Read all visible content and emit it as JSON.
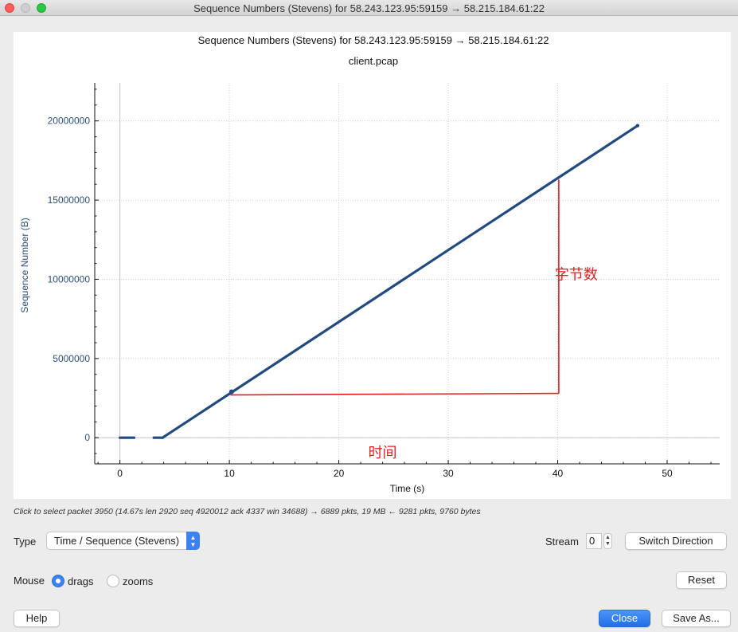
{
  "window": {
    "title": "Sequence Numbers (Stevens) for 58.243.123.95:59159 → 58.215.184.61:22"
  },
  "graph": {
    "title": "Sequence Numbers (Stevens) for 58.243.123.95:59159 → 58.215.184.61:22",
    "subtitle": "client.pcap"
  },
  "chart_data": {
    "type": "scatter",
    "title": "Sequence Numbers (Stevens) for 58.243.123.95:59159 → 58.215.184.61:22",
    "subtitle": "client.pcap",
    "xlabel": "Time (s)",
    "ylabel": "Sequence Number (B)",
    "xlim": [
      -2.3,
      54.8
    ],
    "ylim": [
      -1650000,
      22400000
    ],
    "x_ticks": [
      0,
      10,
      20,
      30,
      40,
      50
    ],
    "y_ticks": [
      0,
      5000000,
      10000000,
      15000000,
      20000000
    ],
    "grid": true,
    "series_color": "#234a80",
    "series": [
      {
        "segments": [
          {
            "x": [
              0.0,
              1.3
            ],
            "y": [
              0,
              0
            ]
          },
          {
            "x": [
              3.1,
              3.9
            ],
            "y": [
              0,
              0
            ]
          },
          {
            "x": [
              3.9,
              47.3
            ],
            "y": [
              0,
              19700000
            ]
          }
        ]
      }
    ],
    "annotations": [
      {
        "text": "时间",
        "x": 24.0,
        "y": -1250000,
        "color": "#e02020"
      },
      {
        "text": "字节数",
        "x": 41.7,
        "y": 10000000,
        "color": "#e02020"
      }
    ],
    "annotation_lines": [
      {
        "x": [
          10.1,
          40.1
        ],
        "y": [
          2700000,
          2800000
        ]
      },
      {
        "x": [
          40.1,
          40.1
        ],
        "y": [
          2800000,
          16300000
        ]
      }
    ]
  },
  "status": {
    "hint": "Click to select packet 3950 (14.67s len 2920 seq 4920012 ack 4337 win 34688) → 6889 pkts, 19 MB ← 9281 pkts, 9760 bytes"
  },
  "controls": {
    "type_label": "Type",
    "type_value": "Time / Sequence (Stevens)",
    "stream_label": "Stream",
    "stream_value": "0",
    "switch_direction": "Switch Direction",
    "mouse_label": "Mouse",
    "drags_label": "drags",
    "zooms_label": "zooms",
    "reset": "Reset",
    "help": "Help",
    "close": "Close",
    "save_as": "Save As..."
  }
}
